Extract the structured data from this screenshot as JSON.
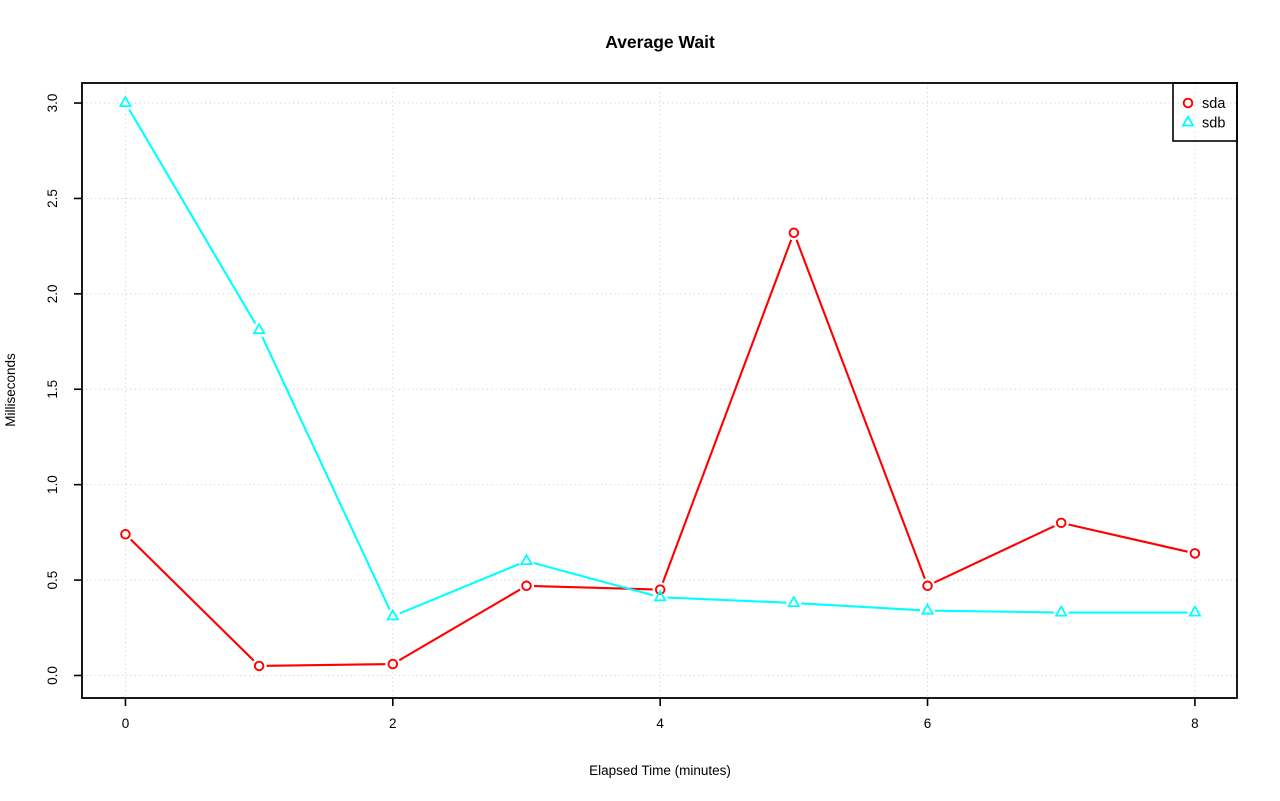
{
  "chart_data": {
    "type": "line",
    "title": "Average Wait",
    "xlabel": "Elapsed Time (minutes)",
    "ylabel": "Milliseconds",
    "x": [
      0,
      1,
      2,
      3,
      4,
      5,
      6,
      7,
      8
    ],
    "series": [
      {
        "name": "sda",
        "color": "#FF0000",
        "marker": "circle",
        "values": [
          0.74,
          0.05,
          0.06,
          0.47,
          0.45,
          2.32,
          0.47,
          0.8,
          0.64
        ]
      },
      {
        "name": "sdb",
        "color": "#00FFFF",
        "marker": "triangle",
        "values": [
          3.0,
          1.81,
          0.31,
          0.6,
          0.41,
          0.38,
          0.34,
          0.33,
          0.33
        ]
      }
    ],
    "xticks": {
      "values": [
        0,
        2,
        4,
        6,
        8
      ],
      "labels": [
        "0",
        "2",
        "4",
        "6",
        "8"
      ]
    },
    "yticks": {
      "values": [
        0,
        0.5,
        1,
        1.5,
        2,
        2.5,
        3
      ],
      "labels": [
        "0.0",
        "0.5",
        "1.0",
        "1.5",
        "2.0",
        "2.5",
        "3.0"
      ]
    },
    "xlim": [
      -0.325,
      8.315
    ],
    "ylim": [
      -0.118,
      3.105
    ],
    "grid": "dotted",
    "legend": {
      "position": "topright",
      "entries": [
        "sda",
        "sdb"
      ]
    },
    "colors": {
      "grid": "#D3D3D3",
      "axis": "#000000",
      "text": "#000000",
      "background": "#FFFFFF"
    }
  }
}
